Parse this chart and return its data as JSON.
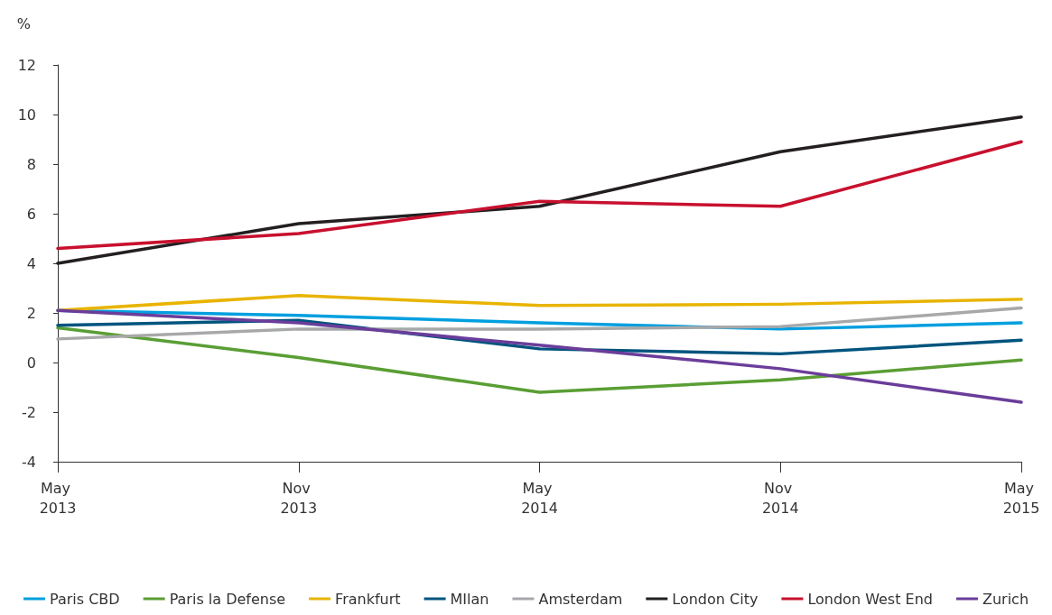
{
  "chart_data": {
    "type": "line",
    "ylabel": "%",
    "categories": [
      "May 2013",
      "Nov 2013",
      "May 2014",
      "Nov 2014",
      "May 2015"
    ],
    "ylim": [
      -4,
      12
    ],
    "yticks": [
      -4,
      -2,
      0,
      2,
      4,
      6,
      8,
      10,
      12
    ],
    "grid": false,
    "legend": "bottom",
    "marker": "none",
    "line_style": "solid",
    "series": [
      {
        "name": "Paris CBD",
        "color": "#009fdf",
        "values": [
          2.1,
          1.9,
          1.6,
          1.35,
          1.6
        ]
      },
      {
        "name": "Paris la Defense",
        "color": "#5a9e34",
        "values": [
          1.4,
          0.2,
          -1.2,
          -0.7,
          0.1
        ]
      },
      {
        "name": "Frankfurt",
        "color": "#e8b400",
        "values": [
          2.1,
          2.7,
          2.3,
          2.35,
          2.55
        ]
      },
      {
        "name": "MIlan",
        "color": "#00547e",
        "values": [
          1.5,
          1.7,
          0.55,
          0.35,
          0.9
        ]
      },
      {
        "name": "Amsterdam",
        "color": "#a7a8aa",
        "values": [
          0.95,
          1.35,
          1.35,
          1.45,
          2.2
        ]
      },
      {
        "name": "London City",
        "color": "#231f20",
        "values": [
          4.0,
          5.6,
          6.3,
          8.5,
          9.9
        ]
      },
      {
        "name": "London West End",
        "color": "#c8102e",
        "values": [
          4.6,
          5.2,
          6.5,
          6.3,
          8.9
        ]
      },
      {
        "name": "Zurich",
        "color": "#6a3d9a",
        "values": [
          2.1,
          1.6,
          0.7,
          -0.25,
          -1.6
        ]
      }
    ]
  }
}
